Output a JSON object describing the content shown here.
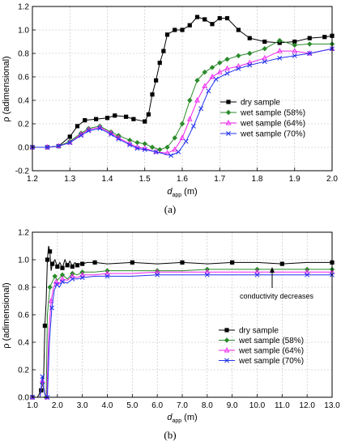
{
  "chart_data": [
    {
      "type": "line",
      "panel_label": "(a)",
      "xlabel": "d",
      "xlabel_sub": "app",
      "xlabel_unit": "(m)",
      "ylabel": "ρ (adimensional)",
      "xlim": [
        1.2,
        2.0
      ],
      "ylim": [
        -0.2,
        1.2
      ],
      "xticks": [
        "1.2",
        "1.3",
        "1.4",
        "1.5",
        "1.6",
        "1.7",
        "1.8",
        "1.9",
        "2.0"
      ],
      "yticks": [
        "-0.2",
        "0.0",
        "0.2",
        "0.4",
        "0.6",
        "0.8",
        "1.0",
        "1.2"
      ],
      "grid": true,
      "legend_position": "right",
      "series": [
        {
          "name": "dry sample",
          "color": "#000000",
          "marker": "square",
          "x": [
            1.2,
            1.24,
            1.27,
            1.3,
            1.32,
            1.34,
            1.37,
            1.4,
            1.42,
            1.45,
            1.47,
            1.5,
            1.51,
            1.52,
            1.53,
            1.54,
            1.55,
            1.56,
            1.58,
            1.6,
            1.62,
            1.64,
            1.66,
            1.68,
            1.7,
            1.72,
            1.75,
            1.78,
            1.82,
            1.86,
            1.9,
            1.94,
            1.98,
            2.0
          ],
          "y": [
            0.0,
            0.0,
            0.01,
            0.09,
            0.18,
            0.23,
            0.24,
            0.25,
            0.27,
            0.26,
            0.24,
            0.22,
            0.28,
            0.45,
            0.57,
            0.72,
            0.82,
            0.96,
            1.0,
            1.0,
            1.04,
            1.11,
            1.09,
            1.05,
            1.1,
            1.1,
            1.0,
            0.93,
            0.9,
            0.89,
            0.9,
            0.93,
            0.94,
            0.95
          ]
        },
        {
          "name": "wet sample (58%)",
          "color": "#2a8a2a",
          "marker": "diamond",
          "x": [
            1.2,
            1.24,
            1.27,
            1.3,
            1.33,
            1.35,
            1.38,
            1.41,
            1.43,
            1.46,
            1.48,
            1.5,
            1.52,
            1.54,
            1.56,
            1.58,
            1.6,
            1.62,
            1.64,
            1.66,
            1.68,
            1.7,
            1.72,
            1.75,
            1.78,
            1.82,
            1.86,
            1.9,
            1.94,
            2.0
          ],
          "y": [
            0.0,
            0.0,
            0.01,
            0.05,
            0.12,
            0.16,
            0.18,
            0.13,
            0.1,
            0.06,
            0.04,
            0.03,
            0.0,
            -0.02,
            0.0,
            0.08,
            0.2,
            0.4,
            0.57,
            0.64,
            0.68,
            0.72,
            0.75,
            0.78,
            0.8,
            0.84,
            0.91,
            0.87,
            0.88,
            0.88
          ]
        },
        {
          "name": "wet sample (64%)",
          "color": "#ee22ee",
          "marker": "triangle",
          "x": [
            1.2,
            1.24,
            1.27,
            1.3,
            1.33,
            1.35,
            1.38,
            1.41,
            1.43,
            1.46,
            1.48,
            1.5,
            1.53,
            1.56,
            1.58,
            1.6,
            1.62,
            1.64,
            1.66,
            1.68,
            1.7,
            1.72,
            1.75,
            1.78,
            1.82,
            1.86,
            1.9,
            1.94,
            2.0
          ],
          "y": [
            0.0,
            0.0,
            0.01,
            0.04,
            0.11,
            0.15,
            0.17,
            0.12,
            0.08,
            0.03,
            0.0,
            -0.01,
            -0.04,
            -0.05,
            -0.02,
            0.08,
            0.24,
            0.4,
            0.52,
            0.6,
            0.64,
            0.67,
            0.69,
            0.72,
            0.76,
            0.82,
            0.82,
            0.8,
            0.84
          ]
        },
        {
          "name": "wet sample (70%)",
          "color": "#2233ee",
          "marker": "x",
          "x": [
            1.2,
            1.24,
            1.27,
            1.3,
            1.33,
            1.35,
            1.38,
            1.41,
            1.43,
            1.46,
            1.48,
            1.5,
            1.53,
            1.57,
            1.59,
            1.61,
            1.63,
            1.65,
            1.67,
            1.69,
            1.72,
            1.75,
            1.78,
            1.82,
            1.86,
            1.9,
            1.94,
            2.0
          ],
          "y": [
            0.0,
            0.0,
            0.01,
            0.04,
            0.1,
            0.14,
            0.16,
            0.11,
            0.07,
            0.02,
            -0.01,
            -0.02,
            -0.04,
            -0.07,
            -0.04,
            0.05,
            0.18,
            0.33,
            0.48,
            0.58,
            0.63,
            0.67,
            0.7,
            0.73,
            0.76,
            0.78,
            0.8,
            0.84
          ]
        }
      ]
    },
    {
      "type": "line",
      "panel_label": "(b)",
      "xlabel": "d",
      "xlabel_sub": "app",
      "xlabel_unit": "(m)",
      "ylabel": "ρ (adimensional)",
      "xlim": [
        1.0,
        13.0
      ],
      "ylim": [
        0.0,
        1.2
      ],
      "xticks": [
        "1.0",
        "2.0",
        "3.0",
        "4.0",
        "5.0",
        "6.0",
        "7.0",
        "8.0",
        "9.0",
        "10.0",
        "11.0",
        "12.0",
        "13.0"
      ],
      "yticks": [
        "0.0",
        "0.2",
        "0.4",
        "0.6",
        "0.8",
        "1.0",
        "1.2"
      ],
      "grid": true,
      "legend_position": "bottom-right",
      "annotation": "conductivity decreases",
      "series": [
        {
          "name": "dry sample",
          "color": "#000000",
          "marker": "square",
          "x": [
            1.0,
            1.2,
            1.35,
            1.45,
            1.5,
            1.55,
            1.6,
            1.65,
            1.7,
            1.75,
            1.8,
            1.9,
            2.0,
            2.1,
            2.2,
            2.3,
            2.4,
            2.5,
            2.6,
            2.7,
            2.8,
            2.9,
            3.0,
            3.2,
            3.5,
            4.0,
            5.0,
            6.0,
            7.0,
            8.0,
            9.0,
            10.0,
            11.0,
            12.0,
            13.0
          ],
          "y": [
            0.0,
            0.0,
            0.05,
            0.15,
            0.52,
            0.7,
            1.0,
            1.1,
            1.06,
            0.92,
            0.97,
            1.0,
            0.95,
            0.98,
            0.94,
            1.0,
            0.96,
            0.99,
            0.95,
            0.98,
            0.96,
            0.97,
            0.97,
            0.98,
            0.98,
            0.97,
            0.98,
            0.97,
            0.98,
            0.97,
            0.98,
            0.98,
            0.97,
            0.98,
            0.98
          ]
        },
        {
          "name": "wet sample (58%)",
          "color": "#2a8a2a",
          "marker": "diamond",
          "x": [
            1.0,
            1.3,
            1.4,
            1.5,
            1.55,
            1.6,
            1.7,
            1.8,
            1.9,
            2.0,
            2.2,
            2.4,
            2.6,
            2.8,
            3.0,
            3.5,
            4.0,
            5.0,
            6.0,
            7.0,
            8.0,
            9.0,
            10.0,
            11.0,
            12.0,
            13.0
          ],
          "y": [
            0.0,
            0.0,
            0.1,
            0.02,
            0.0,
            0.6,
            0.8,
            0.84,
            0.88,
            0.85,
            0.89,
            0.86,
            0.9,
            0.89,
            0.91,
            0.91,
            0.92,
            0.92,
            0.92,
            0.92,
            0.93,
            0.93,
            0.93,
            0.93,
            0.93,
            0.93
          ]
        },
        {
          "name": "wet sample (64%)",
          "color": "#ee22ee",
          "marker": "triangle",
          "x": [
            1.0,
            1.3,
            1.4,
            1.5,
            1.58,
            1.65,
            1.75,
            1.85,
            1.95,
            2.05,
            2.2,
            2.4,
            2.6,
            2.8,
            3.0,
            3.5,
            4.0,
            5.0,
            6.0,
            7.0,
            8.0,
            9.0,
            10.0,
            11.0,
            12.0,
            13.0
          ],
          "y": [
            0.0,
            0.0,
            0.12,
            0.02,
            0.0,
            0.45,
            0.7,
            0.8,
            0.84,
            0.82,
            0.86,
            0.85,
            0.88,
            0.87,
            0.89,
            0.89,
            0.9,
            0.9,
            0.91,
            0.91,
            0.91,
            0.91,
            0.91,
            0.91,
            0.91,
            0.91
          ]
        },
        {
          "name": "wet sample (70%)",
          "color": "#2233ee",
          "marker": "x",
          "x": [
            1.0,
            1.3,
            1.4,
            1.5,
            1.6,
            1.68,
            1.78,
            1.88,
            1.98,
            2.08,
            2.2,
            2.4,
            2.6,
            2.8,
            3.0,
            3.5,
            4.0,
            5.0,
            6.0,
            7.0,
            8.0,
            9.0,
            10.0,
            11.0,
            12.0,
            13.0
          ],
          "y": [
            0.0,
            0.0,
            0.15,
            0.02,
            0.0,
            0.4,
            0.65,
            0.78,
            0.82,
            0.8,
            0.84,
            0.83,
            0.86,
            0.86,
            0.87,
            0.88,
            0.88,
            0.88,
            0.89,
            0.89,
            0.89,
            0.89,
            0.89,
            0.89,
            0.89,
            0.89
          ]
        }
      ]
    }
  ]
}
